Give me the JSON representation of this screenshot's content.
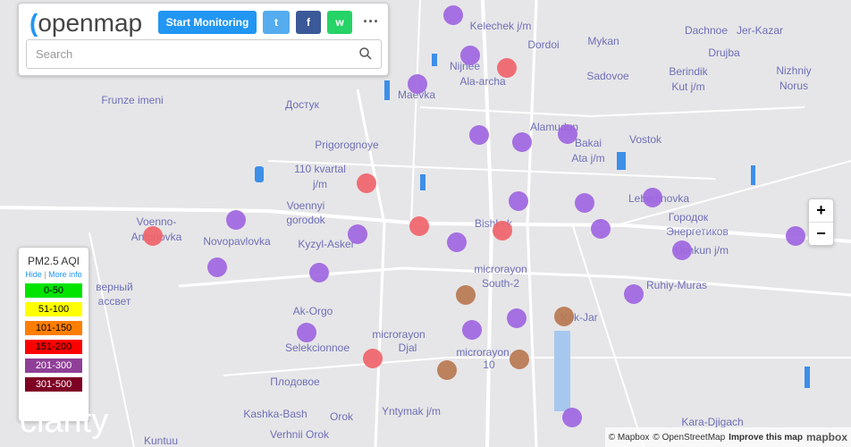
{
  "header": {
    "logo": "openmap",
    "button": "Start Monitoring",
    "search_placeholder": "Search",
    "more": "···"
  },
  "legend": {
    "title": "PM2.5 AQI",
    "hide": "Hide",
    "separator": "|",
    "more_info": "More info",
    "ranges": [
      {
        "label": "0-50",
        "color": "#00e400"
      },
      {
        "label": "51-100",
        "color": "#ffff00"
      },
      {
        "label": "101-150",
        "color": "#ff7e00"
      },
      {
        "label": "151-200",
        "color": "#ff0000"
      },
      {
        "label": "201-300",
        "color": "#8f3f97"
      },
      {
        "label": "301-500",
        "color": "#7e0023"
      }
    ]
  },
  "map": {
    "labels": [
      "Kelechek j/m",
      "Dordoi",
      "Mykan",
      "Dachnoe",
      "Jer-Kazar",
      "Drujba",
      "Nizhniy",
      "Norus",
      "Nijnee",
      "Ala-archa",
      "Maevka",
      "Sadovoe",
      "Berindik",
      "Kut j/m",
      "Frunze imeni",
      "Достук",
      "Alamudun",
      "Bakai",
      "Ata j/m",
      "Vostok",
      "Prigorognoye",
      "110 kvartal",
      "j/m",
      "Lebedinovka",
      "Voennyi",
      "gorodok",
      "Bishkek",
      "Городок",
      "Энергетиков",
      "Voenno-",
      "Antonovka",
      "Novopavlovka",
      "Kyzyl-Asker",
      "Uchkun j/m",
      "microrayon",
      "South-2",
      "Ruhiy-Muras",
      "Ak-Orgo",
      "Kok-Jar",
      "microrayon",
      "Djal",
      "Selekcionnoe",
      "microrayon",
      "10",
      "Плодовое",
      "Kashka-Bash",
      "Orok",
      "Yntymak j/m",
      "Verhnii Orok",
      "Kara-Djigach",
      "Kuntuu",
      "верный",
      "ассвет"
    ]
  },
  "controls": {
    "zoom_in": "+",
    "zoom_out": "−"
  },
  "attribution": {
    "mapbox": "© Mapbox",
    "osm": "© OpenStreetMap",
    "improve": "Improve this map",
    "logo": "mapbox"
  },
  "brand": "clarity"
}
